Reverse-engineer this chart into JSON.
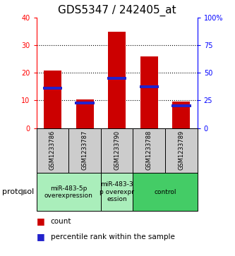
{
  "title": "GDS5347 / 242405_at",
  "samples": [
    "GSM1233786",
    "GSM1233787",
    "GSM1233790",
    "GSM1233788",
    "GSM1233789"
  ],
  "counts": [
    21,
    10.5,
    35,
    26,
    9.7
  ],
  "percentile_values": [
    14.5,
    9.0,
    18.0,
    15.0,
    8.0
  ],
  "ylim_left": [
    0,
    40
  ],
  "ylim_right": [
    0,
    100
  ],
  "yticks_left": [
    0,
    10,
    20,
    30,
    40
  ],
  "yticks_right": [
    0,
    25,
    50,
    75,
    100
  ],
  "ytick_labels_right": [
    "0",
    "25",
    "50",
    "75",
    "100%"
  ],
  "bar_color": "#cc0000",
  "blue_color": "#2222cc",
  "group_defs": [
    {
      "indices": [
        0,
        1
      ],
      "label": "miR-483-5p\noverexpression",
      "color": "#aaeebb"
    },
    {
      "indices": [
        2
      ],
      "label": "miR-483-3\np overexpr\nession",
      "color": "#aaeebb"
    },
    {
      "indices": [
        3,
        4
      ],
      "label": "control",
      "color": "#44cc66"
    }
  ],
  "protocol_label": "protocol",
  "legend_count_label": "count",
  "legend_pct_label": "percentile rank within the sample",
  "title_fontsize": 11,
  "tick_fontsize": 7,
  "sample_fontsize": 6,
  "proto_fontsize": 6.5,
  "legend_fontsize": 7.5
}
